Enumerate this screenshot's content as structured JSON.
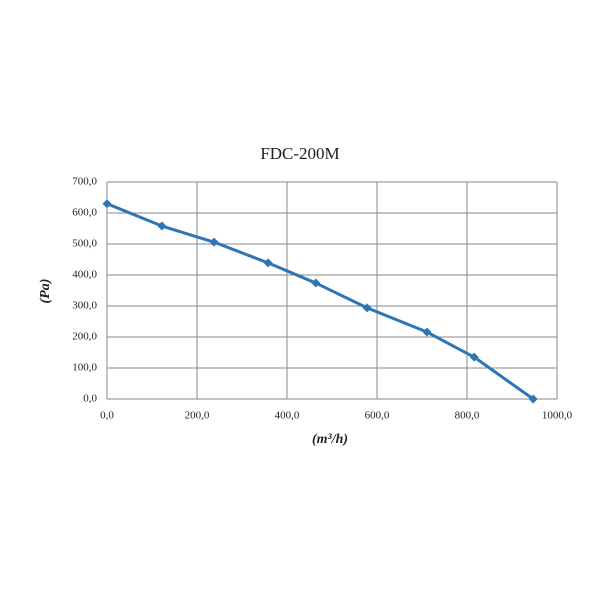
{
  "chart_data": {
    "type": "line",
    "title": "FDC-200M",
    "x_label": "(m³/h)",
    "y_label": "(Pa)",
    "x": [
      0,
      122,
      238,
      358,
      464,
      578,
      711,
      816,
      947
    ],
    "series": [
      {
        "color": "#2e75b6",
        "values": [
          630,
          558,
          506,
          439,
          374,
          294,
          216,
          135,
          0
        ]
      }
    ],
    "xlim": [
      0,
      1000
    ],
    "xticks": [
      {
        "value": 0,
        "label": "0,0"
      },
      {
        "value": 200,
        "label": "200,0"
      },
      {
        "value": 400,
        "label": "400,0"
      },
      {
        "value": 600,
        "label": "600,0"
      },
      {
        "value": 800,
        "label": "800,0"
      },
      {
        "value": 1000,
        "label": "1000,0"
      }
    ],
    "ylim": [
      0,
      700
    ],
    "yticks": [
      {
        "value": 0,
        "label": "0,0"
      },
      {
        "value": 100,
        "label": "100,0"
      },
      {
        "value": 200,
        "label": "200,0"
      },
      {
        "value": 300,
        "label": "300,0"
      },
      {
        "value": 400,
        "label": "400,0"
      },
      {
        "value": 500,
        "label": "500,0"
      },
      {
        "value": 600,
        "label": "600,0"
      },
      {
        "value": 700,
        "label": "700,0"
      }
    ],
    "grid": true
  }
}
